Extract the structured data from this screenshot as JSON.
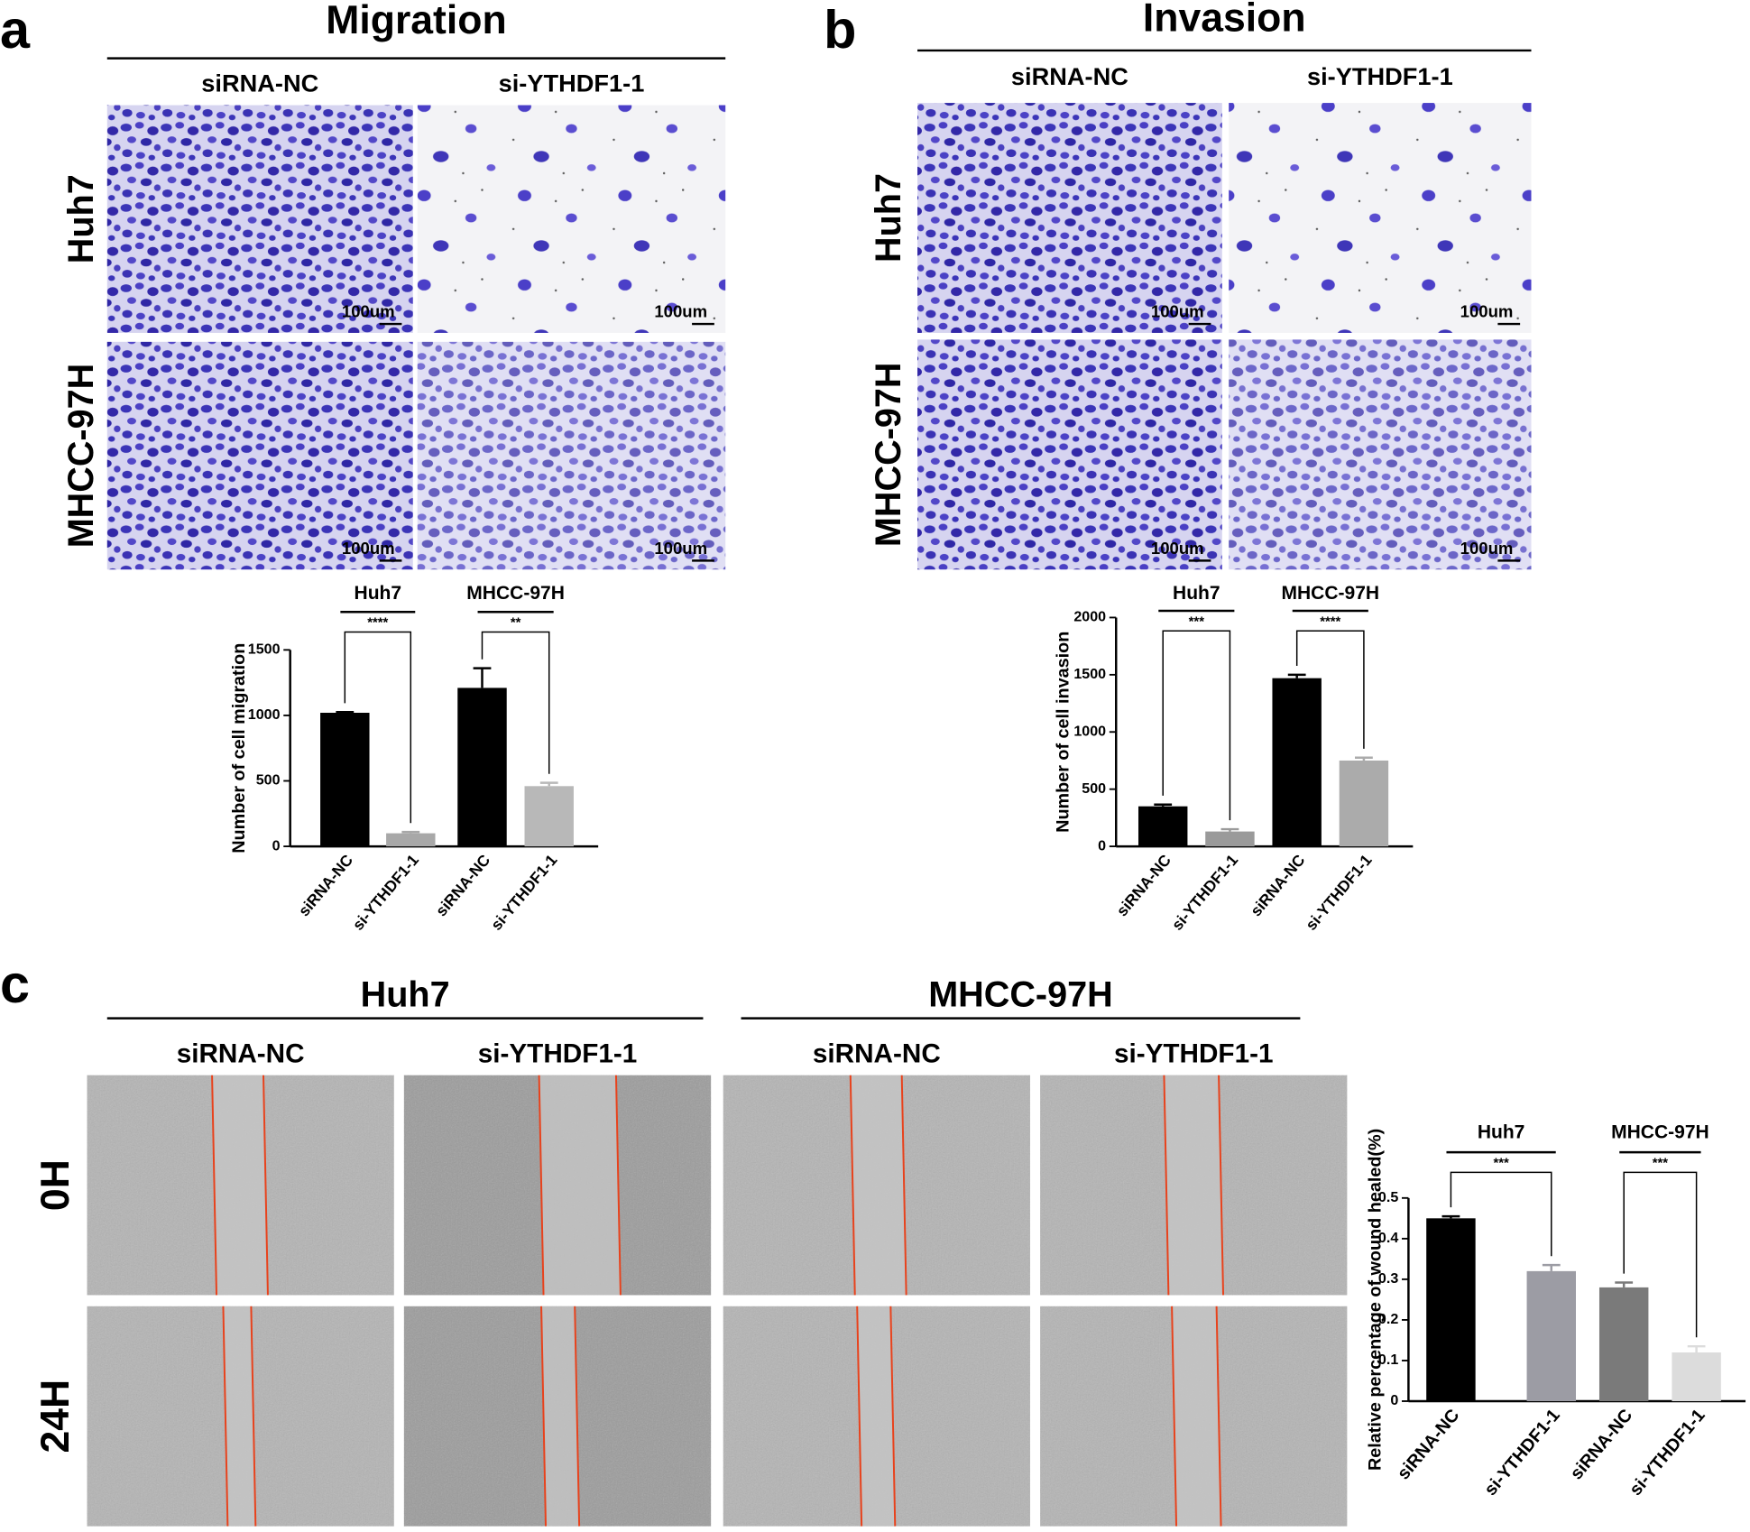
{
  "panel_a": {
    "label": "a",
    "title": "Migration",
    "columns": [
      "siRNA-NC",
      "si-YTHDF1-1"
    ],
    "rows": [
      "Huh7",
      "MHCC-97H"
    ],
    "scale_bar": "100um"
  },
  "panel_b": {
    "label": "b",
    "title": "Invasion",
    "columns": [
      "siRNA-NC",
      "si-YTHDF1-1"
    ],
    "rows": [
      "Huh7",
      "MHCC-97H"
    ],
    "scale_bar": "100um"
  },
  "panel_c": {
    "label": "c",
    "groups": [
      "Huh7",
      "MHCC-97H"
    ],
    "columns": [
      "siRNA-NC",
      "si-YTHDF1-1",
      "siRNA-NC",
      "si-YTHDF1-1"
    ],
    "rows": [
      "0H",
      "24H"
    ]
  },
  "chart_data": [
    {
      "type": "bar",
      "ylabel": "Number of cell migration",
      "categories": [
        "siRNA-NC",
        "si-YTHDF1-1",
        "siRNA-NC",
        "si-YTHDF1-1"
      ],
      "groups": [
        "Huh7",
        "MHCC-97H"
      ],
      "significance": [
        "****",
        "**"
      ],
      "values": [
        1020,
        100,
        1210,
        460
      ],
      "errors": [
        5,
        10,
        150,
        25
      ],
      "colors": [
        "#000000",
        "#a8a8a8",
        "#000000",
        "#b8b8b8"
      ],
      "ylim": [
        0,
        1500
      ],
      "yticks": [
        0,
        500,
        1000,
        1500
      ]
    },
    {
      "type": "bar",
      "ylabel": "Number of cell invasion",
      "categories": [
        "siRNA-NC",
        "si-YTHDF1-1",
        "siRNA-NC",
        "si-YTHDF1-1"
      ],
      "groups": [
        "Huh7",
        "MHCC-97H"
      ],
      "significance": [
        "***",
        "****"
      ],
      "values": [
        350,
        130,
        1470,
        750
      ],
      "errors": [
        15,
        20,
        30,
        25
      ],
      "colors": [
        "#000000",
        "#9a9a9a",
        "#000000",
        "#ababab"
      ],
      "ylim": [
        0,
        2000
      ],
      "yticks": [
        0,
        500,
        1000,
        1500,
        2000
      ]
    },
    {
      "type": "bar",
      "ylabel": "Relative percentage of wound healed(%)",
      "categories": [
        "siRNA-NC",
        "si-YTHDF1-1",
        "siRNA-NC",
        "si-YTHDF1-1"
      ],
      "groups": [
        "Huh7",
        "MHCC-97H"
      ],
      "significance": [
        "***",
        "***"
      ],
      "values": [
        0.45,
        0.32,
        0.28,
        0.12
      ],
      "errors": [
        0.005,
        0.015,
        0.012,
        0.015
      ],
      "colors": [
        "#000000",
        "#9c9ca4",
        "#7a7a7a",
        "#dcdcdc"
      ],
      "ylim": [
        0,
        0.5
      ],
      "yticks": [
        0,
        0.1,
        0.2,
        0.3,
        0.4,
        0.5
      ]
    }
  ]
}
